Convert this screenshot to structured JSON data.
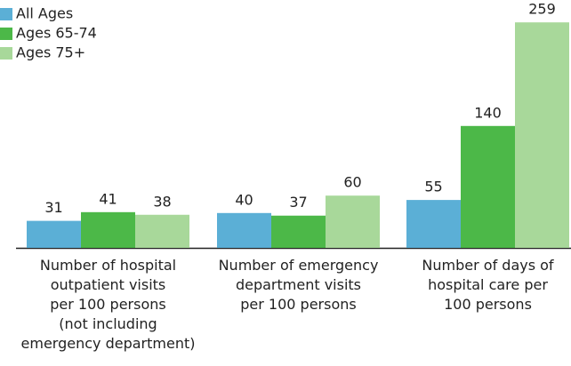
{
  "chart_data": {
    "type": "bar",
    "categories": [
      "Number of hospital\noutpatient visits\nper 100 persons\n(not including\nemergency department)",
      "Number of emergency\ndepartment visits\nper 100 persons",
      "Number of days of\nhospital care per\n100 persons"
    ],
    "series": [
      {
        "name": "All Ages",
        "color": "#5bafd6",
        "values": [
          31,
          40,
          55
        ]
      },
      {
        "name": "Ages 65-74",
        "color": "#4cb848",
        "values": [
          41,
          37,
          140
        ]
      },
      {
        "name": "Ages 75+",
        "color": "#a8d89a",
        "values": [
          38,
          60,
          259
        ]
      }
    ],
    "legend": "top-left"
  }
}
